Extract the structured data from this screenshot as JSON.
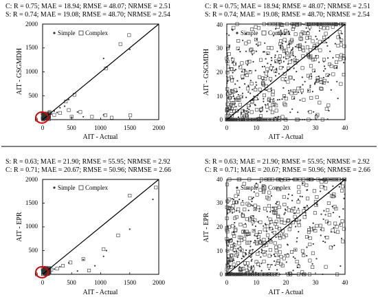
{
  "chart_data": [
    {
      "type": "scatter",
      "stats": [
        "C: R = 0.75; MAE = 18.94; RMSE = 48.07; NRMSE = 2.51",
        "S: R = 0.74; MAE = 19.08; RMSE = 48.70; NRMSE = 2.54"
      ],
      "xlabel": "AIT - Actual",
      "ylabel": "AIT - GSGMDH",
      "xlim": [
        0,
        2000
      ],
      "ylim": [
        0,
        2000
      ],
      "xticks": [
        0,
        500,
        1000,
        1500,
        2000
      ],
      "yticks": [
        0,
        500,
        1000,
        1500,
        2000
      ],
      "legend": [
        "Simple",
        "Complex"
      ],
      "legend_position": "top-left",
      "series": [
        {
          "name": "Simple",
          "marker": "dot",
          "points": [
            [
              1050,
              1280
            ],
            [
              1500,
              1470
            ],
            [
              1100,
              1100
            ],
            [
              450,
              420
            ],
            [
              300,
              250
            ],
            [
              200,
              180
            ],
            [
              1050,
              100
            ],
            [
              700,
              60
            ],
            [
              380,
              280
            ],
            [
              600,
              160
            ],
            [
              250,
              150
            ],
            [
              150,
              120
            ],
            [
              100,
              110
            ],
            [
              60,
              80
            ],
            [
              40,
              60
            ],
            [
              500,
              50
            ]
          ]
        },
        {
          "name": "Complex",
          "marker": "square",
          "points": [
            [
              1490,
              1770
            ],
            [
              1090,
              1070
            ],
            [
              1340,
              1580
            ],
            [
              550,
              520
            ],
            [
              400,
              380
            ],
            [
              1080,
              90
            ],
            [
              1190,
              40
            ],
            [
              1510,
              90
            ],
            [
              850,
              60
            ],
            [
              650,
              160
            ],
            [
              450,
              200
            ],
            [
              300,
              140
            ],
            [
              200,
              100
            ],
            [
              120,
              160
            ],
            [
              80,
              130
            ],
            [
              50,
              100
            ],
            [
              30,
              70
            ],
            [
              20,
              40
            ],
            [
              500,
              60
            ]
          ]
        }
      ],
      "highlight": "red-circle-at-origin"
    },
    {
      "type": "scatter",
      "stats": [
        "C: R = 0.75; MAE = 18.94; RMSE = 48.07; NRMSE = 2.51",
        "S: R = 0.74; MAE = 19.08; RMSE = 48.70; NRMSE = 2.54"
      ],
      "xlabel": "AIT - Actual",
      "ylabel": "AIT - GSGMDH",
      "xlim": [
        0,
        40
      ],
      "ylim": [
        0,
        40
      ],
      "xticks": [
        0,
        10,
        20,
        30,
        40
      ],
      "yticks": [
        0,
        10,
        20,
        30,
        40
      ],
      "legend": [
        "Simple",
        "Complex"
      ],
      "legend_position": "top-left",
      "series": [
        {
          "name": "Simple",
          "marker": "dot",
          "points": []
        },
        {
          "name": "Complex",
          "marker": "square",
          "points": []
        }
      ],
      "dense_cloud": true
    },
    {
      "type": "scatter",
      "stats": [
        "S: R = 0.63; MAE = 21.90; RMSE = 55.95; NRMSE = 2.92",
        "C: R = 0.71; MAE = 20.67; RMSE = 50.96; NRMSE = 2.66"
      ],
      "xlabel": "AIT - Actual",
      "ylabel": "AIT - EPR",
      "xlim": [
        0,
        2000
      ],
      "ylim": [
        0,
        2000
      ],
      "xticks": [
        0,
        500,
        1000,
        1500,
        2000
      ],
      "yticks": [
        0,
        500,
        1000,
        1500,
        2000
      ],
      "legend": [
        "Simple",
        "Complex"
      ],
      "legend_position": "top-left",
      "series": [
        {
          "name": "Simple",
          "marker": "dot",
          "points": [
            [
              1900,
              1580
            ],
            [
              1500,
              950
            ],
            [
              1100,
              500
            ],
            [
              1050,
              380
            ],
            [
              700,
              310
            ],
            [
              450,
              240
            ],
            [
              300,
              160
            ],
            [
              200,
              110
            ],
            [
              120,
              90
            ],
            [
              80,
              70
            ],
            [
              50,
              40
            ],
            [
              600,
              70
            ],
            [
              900,
              180
            ]
          ]
        },
        {
          "name": "Complex",
          "marker": "square",
          "points": [
            [
              1950,
              1830
            ],
            [
              1500,
              1660
            ],
            [
              1300,
              820
            ],
            [
              1050,
              530
            ],
            [
              700,
              320
            ],
            [
              480,
              250
            ],
            [
              350,
              180
            ],
            [
              250,
              120
            ],
            [
              150,
              100
            ],
            [
              90,
              80
            ],
            [
              60,
              60
            ],
            [
              40,
              40
            ],
            [
              800,
              80
            ]
          ]
        }
      ],
      "highlight": "red-circle-at-origin"
    },
    {
      "type": "scatter",
      "stats": [
        "S: R = 0.63; MAE = 21.90; RMSE = 55.95; NRMSE = 2.92",
        "C: R = 0.71; MAE = 20.67; RMSE = 50.96; NRMSE = 2.66"
      ],
      "xlabel": "AIT - Actual",
      "ylabel": "AIT - EPR",
      "xlim": [
        0,
        40
      ],
      "ylim": [
        0,
        40
      ],
      "xticks": [
        0,
        10,
        20,
        30,
        40
      ],
      "yticks": [
        0,
        10,
        20,
        30,
        40
      ],
      "legend": [
        "Simple",
        "Complex"
      ],
      "legend_position": "top-left",
      "series": [
        {
          "name": "Simple",
          "marker": "dot",
          "points": []
        },
        {
          "name": "Complex",
          "marker": "square",
          "points": []
        }
      ],
      "dense_cloud": true
    }
  ],
  "colors": {
    "marks": "#333333",
    "highlight": "#dd0000",
    "divider": "#000000"
  }
}
